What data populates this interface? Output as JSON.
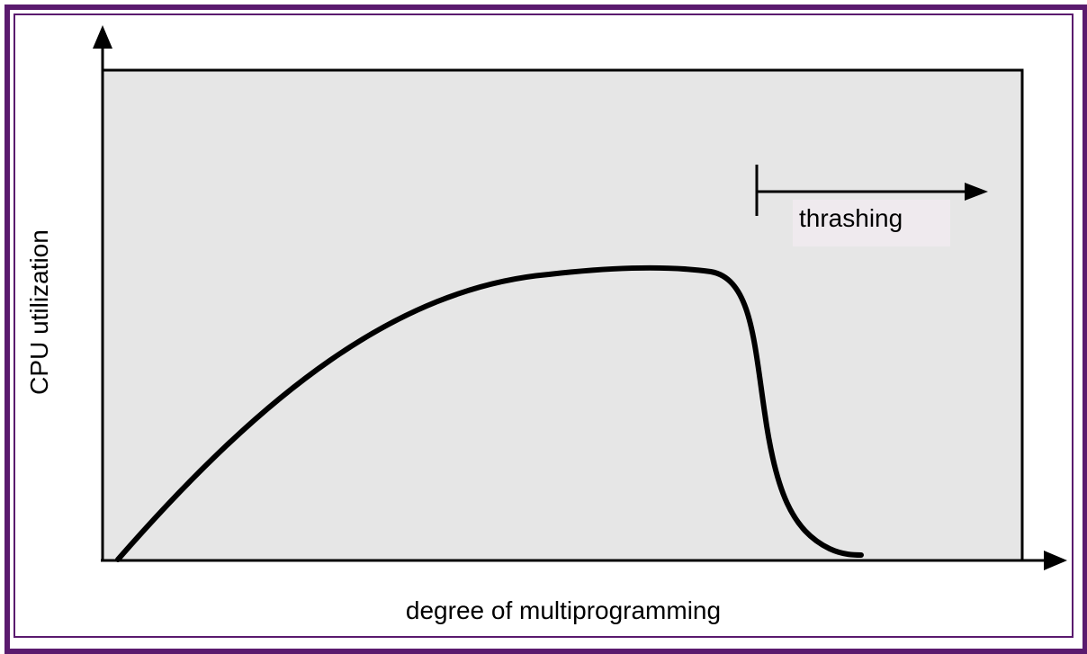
{
  "labels": {
    "y_axis": "CPU utilization",
    "x_axis": "degree of multiprogramming",
    "region": "thrashing"
  },
  "colors": {
    "frame": "#5a1a6e",
    "plot_background": "#e6e6e6",
    "label_background": "#efeaee",
    "curve": "#000000"
  }
}
